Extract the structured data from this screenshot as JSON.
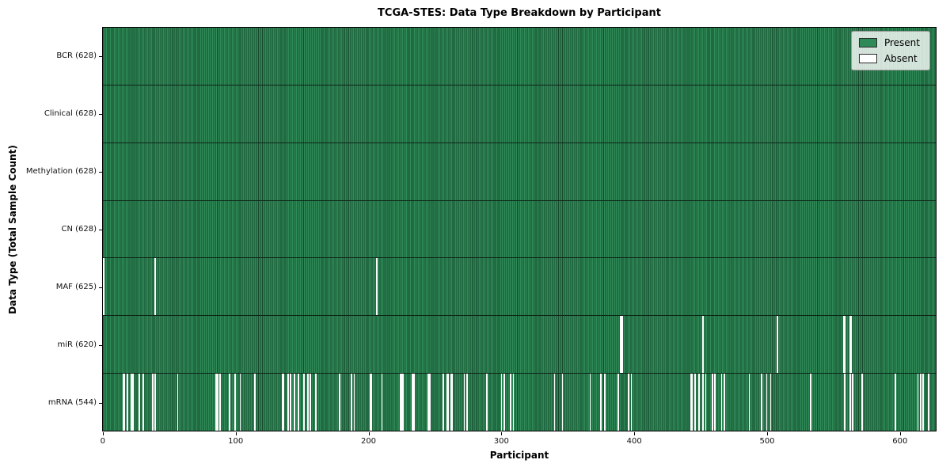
{
  "chart_data": {
    "type": "heatmap",
    "title": "TCGA-STES: Data Type Breakdown by Participant",
    "xlabel": "Participant",
    "ylabel": "Data Type (Total Sample Count)",
    "n_participants": 628,
    "x_ticks": [
      0,
      100,
      200,
      300,
      400,
      500,
      600
    ],
    "grid": false,
    "legend_position": "upper right",
    "legend": [
      {
        "label": "Present",
        "color": "#2e8b57"
      },
      {
        "label": "Absent",
        "color": "#ffffff"
      }
    ],
    "colors": {
      "present_fill": "#2e8b57",
      "present_edge": "#17482c",
      "absent_fill": "#ffffff",
      "row_divider": "#0d2417",
      "spine": "#000000"
    },
    "rows": [
      {
        "data_type": "BCR",
        "label": "BCR (628)",
        "present_count": 628,
        "absent_participants": []
      },
      {
        "data_type": "Clinical",
        "label": "Clinical (628)",
        "present_count": 628,
        "absent_participants": []
      },
      {
        "data_type": "Methylation",
        "label": "Methylation (628)",
        "present_count": 628,
        "absent_participants": []
      },
      {
        "data_type": "CN",
        "label": "CN (628)",
        "present_count": 628,
        "absent_participants": []
      },
      {
        "data_type": "MAF",
        "label": "MAF (625)",
        "present_count": 625,
        "absent_participants": [
          0,
          39,
          206
        ]
      },
      {
        "data_type": "miR",
        "label": "miR (620)",
        "present_count": 620,
        "absent_participants": [
          390,
          391,
          452,
          508,
          558,
          559,
          563,
          564
        ]
      },
      {
        "data_type": "mRNA",
        "label": "mRNA (544)",
        "present_count": 544,
        "absent_participants": [
          15,
          16,
          18,
          21,
          22,
          27,
          30,
          37,
          39,
          56,
          85,
          86,
          88,
          95,
          99,
          103,
          114,
          135,
          136,
          139,
          141,
          144,
          147,
          151,
          154,
          156,
          160,
          178,
          187,
          189,
          201,
          202,
          210,
          224,
          225,
          226,
          233,
          234,
          245,
          246,
          256,
          259,
          260,
          262,
          263,
          272,
          274,
          289,
          300,
          302,
          307,
          309,
          340,
          346,
          367,
          375,
          378,
          388,
          396,
          398,
          443,
          444,
          446,
          449,
          452,
          454,
          459,
          461,
          466,
          468,
          487,
          496,
          500,
          503,
          533,
          559,
          563,
          565,
          572,
          597,
          614,
          616,
          618,
          622
        ]
      }
    ]
  }
}
